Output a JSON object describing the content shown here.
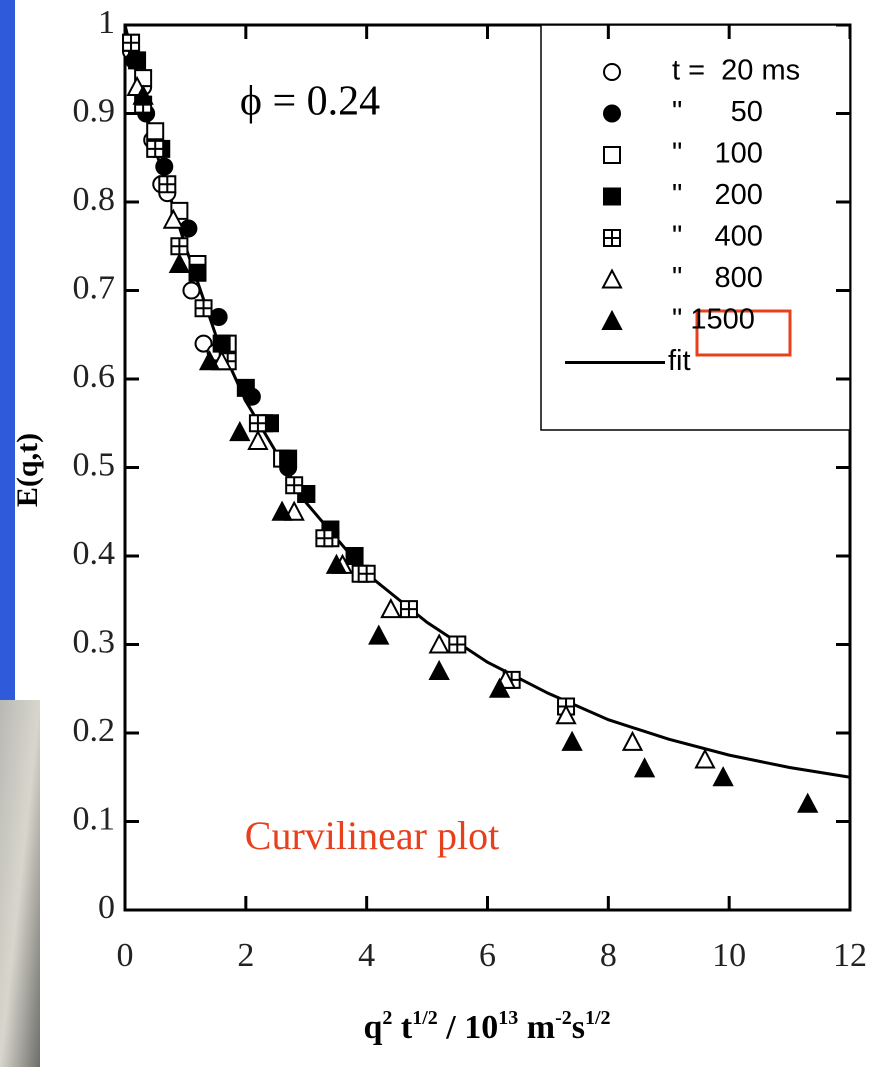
{
  "chart_data": {
    "type": "scatter",
    "annotation": "ϕ = 0.24",
    "caption": "Curvilinear plot",
    "ylabel": "E(q,t)",
    "xlabel": [
      "q",
      "2",
      " t",
      "1/2",
      " / 10",
      "13",
      " m",
      "-2",
      "s",
      "1/2"
    ],
    "xlim": [
      0,
      12
    ],
    "ylim": [
      0,
      1
    ],
    "xticks": [
      0,
      2,
      4,
      6,
      8,
      10,
      12
    ],
    "yticks": [
      0,
      0.1,
      0.2,
      0.3,
      0.4,
      0.5,
      0.6,
      0.7,
      0.8,
      0.9,
      1
    ],
    "series": [
      {
        "name": "t =  20 ms",
        "marker": "circle-open",
        "color": "#000000",
        "x": [
          0.1,
          0.3,
          0.45,
          0.6,
          0.7,
          1.1,
          1.3,
          1.5
        ],
        "values": [
          0.97,
          0.93,
          0.87,
          0.82,
          0.81,
          0.7,
          0.64,
          0.63
        ]
      },
      {
        "name": "\"      50",
        "marker": "circle-filled",
        "color": "#000000",
        "x": [
          0.15,
          0.35,
          0.65,
          1.05,
          1.55,
          2.1,
          2.7
        ],
        "values": [
          0.96,
          0.9,
          0.84,
          0.77,
          0.67,
          0.58,
          0.5
        ]
      },
      {
        "name": "\"    100",
        "marker": "square-open",
        "color": "#000000",
        "x": [
          0.1,
          0.3,
          0.5,
          0.9,
          1.2,
          1.7,
          2.3,
          2.6,
          3.0,
          3.4,
          3.9
        ],
        "values": [
          0.98,
          0.94,
          0.88,
          0.79,
          0.73,
          0.64,
          0.55,
          0.51,
          0.47,
          0.42,
          0.38
        ]
      },
      {
        "name": "\"    200",
        "marker": "square-filled",
        "color": "#000000",
        "x": [
          0.2,
          0.6,
          1.2,
          1.6,
          2.0,
          2.4,
          2.7,
          3.0,
          3.4,
          3.8
        ],
        "values": [
          0.96,
          0.86,
          0.72,
          0.64,
          0.59,
          0.55,
          0.51,
          0.47,
          0.43,
          0.4
        ]
      },
      {
        "name": "\"    400",
        "marker": "square-plus",
        "color": "#000000",
        "x": [
          0.1,
          0.3,
          0.5,
          0.7,
          0.9,
          1.3,
          1.7,
          2.2,
          2.8,
          3.3,
          4.0,
          4.7,
          5.5,
          6.4,
          7.3
        ],
        "values": [
          0.98,
          0.91,
          0.86,
          0.82,
          0.75,
          0.68,
          0.62,
          0.55,
          0.48,
          0.42,
          0.38,
          0.34,
          0.3,
          0.26,
          0.23
        ]
      },
      {
        "name": "\"    800",
        "marker": "triangle-open",
        "color": "#000000",
        "x": [
          0.2,
          0.8,
          1.6,
          2.2,
          2.8,
          3.6,
          4.4,
          5.2,
          6.3,
          7.3,
          8.4,
          9.6
        ],
        "values": [
          0.93,
          0.78,
          0.62,
          0.53,
          0.45,
          0.39,
          0.34,
          0.3,
          0.26,
          0.22,
          0.19,
          0.17
        ]
      },
      {
        "name": "\" 1500",
        "marker": "triangle-filled",
        "color": "#000000",
        "x": [
          0.3,
          0.9,
          1.4,
          1.9,
          2.6,
          3.5,
          4.2,
          5.2,
          6.2,
          7.4,
          8.6,
          9.9,
          11.3
        ],
        "values": [
          0.92,
          0.73,
          0.62,
          0.54,
          0.45,
          0.39,
          0.31,
          0.27,
          0.25,
          0.19,
          0.16,
          0.15,
          0.12
        ]
      },
      {
        "name": "fit",
        "marker": "line",
        "color": "#000000",
        "x": [
          0,
          0.5,
          1,
          1.5,
          2,
          3,
          4,
          5,
          6,
          7,
          8,
          9,
          10,
          11,
          12
        ],
        "values": [
          1,
          0.86,
          0.75,
          0.65,
          0.575,
          0.46,
          0.38,
          0.325,
          0.28,
          0.245,
          0.215,
          0.193,
          0.175,
          0.161,
          0.15
        ]
      }
    ]
  }
}
